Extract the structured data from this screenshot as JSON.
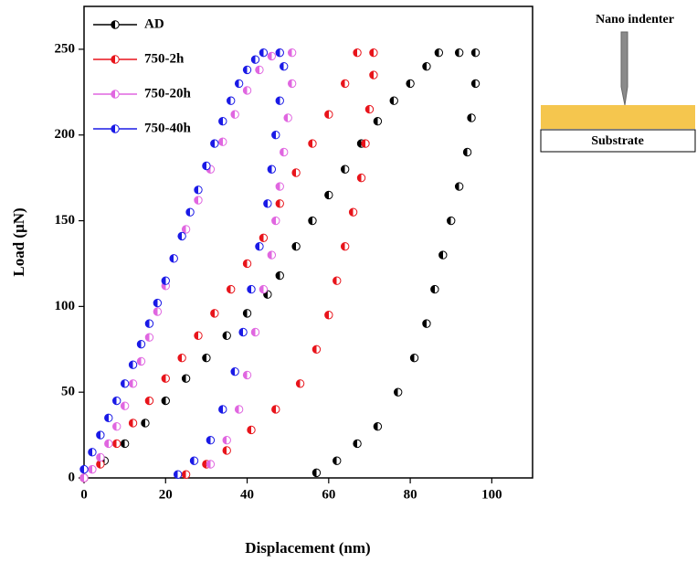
{
  "chart_data": {
    "type": "scatter",
    "xlabel": "Displacement (nm)",
    "ylabel": "Load (μN)",
    "xlim": [
      0,
      110
    ],
    "ylim": [
      0,
      275
    ],
    "xticks": [
      0,
      20,
      40,
      60,
      80,
      100
    ],
    "yticks": [
      0,
      50,
      100,
      150,
      200,
      250
    ],
    "legend": "upper left",
    "annotations": [
      "Nano indenter",
      "Substrate"
    ],
    "series": [
      {
        "name": "AD",
        "color": "#000000",
        "x": [
          0,
          5,
          10,
          15,
          20,
          25,
          30,
          35,
          40,
          45,
          48,
          52,
          56,
          60,
          64,
          68,
          72,
          76,
          80,
          84,
          87,
          92,
          96,
          96,
          95,
          94,
          92,
          90,
          88,
          86,
          84,
          81,
          77,
          72,
          67,
          62,
          57
        ],
        "y": [
          0,
          10,
          20,
          32,
          45,
          58,
          70,
          83,
          96,
          107,
          118,
          135,
          150,
          165,
          180,
          195,
          208,
          220,
          230,
          240,
          248,
          248,
          248,
          230,
          210,
          190,
          170,
          150,
          130,
          110,
          90,
          70,
          50,
          30,
          20,
          10,
          3
        ]
      },
      {
        "name": "750-2h",
        "color": "#e8141b",
        "x": [
          0,
          4,
          8,
          12,
          16,
          20,
          24,
          28,
          32,
          36,
          40,
          44,
          48,
          52,
          56,
          60,
          64,
          67,
          71,
          71,
          70,
          69,
          68,
          66,
          64,
          62,
          60,
          57,
          53,
          47,
          41,
          35,
          30,
          25
        ],
        "y": [
          0,
          8,
          20,
          32,
          45,
          58,
          70,
          83,
          96,
          110,
          125,
          140,
          160,
          178,
          195,
          212,
          230,
          248,
          248,
          235,
          215,
          195,
          175,
          155,
          135,
          115,
          95,
          75,
          55,
          40,
          28,
          16,
          8,
          2
        ]
      },
      {
        "name": "750-20h",
        "color": "#e066e0",
        "x": [
          0,
          2,
          4,
          6,
          8,
          10,
          12,
          14,
          16,
          18,
          20,
          22,
          25,
          28,
          31,
          34,
          37,
          40,
          43,
          46,
          48,
          51,
          51,
          50,
          49,
          48,
          47,
          46,
          44,
          42,
          40,
          38,
          35,
          31
        ],
        "y": [
          0,
          5,
          12,
          20,
          30,
          42,
          55,
          68,
          82,
          97,
          112,
          128,
          145,
          162,
          180,
          196,
          212,
          226,
          238,
          246,
          248,
          248,
          230,
          210,
          190,
          170,
          150,
          130,
          110,
          85,
          60,
          40,
          22,
          8
        ]
      },
      {
        "name": "750-40h",
        "color": "#1a1ae6",
        "x": [
          0,
          2,
          4,
          6,
          8,
          10,
          12,
          14,
          16,
          18,
          20,
          22,
          24,
          26,
          28,
          30,
          32,
          34,
          36,
          38,
          40,
          42,
          44,
          48,
          49,
          48,
          47,
          46,
          45,
          43,
          41,
          39,
          37,
          34,
          31,
          27,
          23
        ],
        "y": [
          5,
          15,
          25,
          35,
          45,
          55,
          66,
          78,
          90,
          102,
          115,
          128,
          141,
          155,
          168,
          182,
          195,
          208,
          220,
          230,
          238,
          244,
          248,
          248,
          240,
          220,
          200,
          180,
          160,
          135,
          110,
          85,
          62,
          40,
          22,
          10,
          2
        ]
      }
    ]
  }
}
